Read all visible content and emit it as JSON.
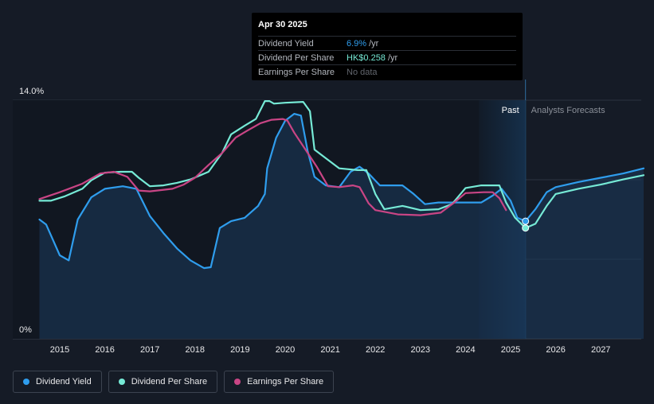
{
  "chart_data": {
    "type": "line",
    "x_ticks": [
      "2015",
      "2016",
      "2017",
      "2018",
      "2019",
      "2020",
      "2021",
      "2022",
      "2023",
      "2024",
      "2025",
      "2026",
      "2027"
    ],
    "y_ticks": [
      "0%",
      "14.0%"
    ],
    "ylim": [
      0,
      14
    ],
    "region_labels": {
      "past": "Past",
      "forecast": "Analysts Forecasts"
    },
    "series": [
      {
        "name": "Dividend Yield",
        "color": "#2f9ded",
        "filled": true,
        "points": [
          [
            2014.55,
            7.0
          ],
          [
            2014.7,
            6.7
          ],
          [
            2014.85,
            5.8
          ],
          [
            2015.0,
            4.9
          ],
          [
            2015.2,
            4.6
          ],
          [
            2015.4,
            7.0
          ],
          [
            2015.7,
            8.3
          ],
          [
            2016.0,
            8.8
          ],
          [
            2016.4,
            8.95
          ],
          [
            2016.7,
            8.8
          ],
          [
            2017.0,
            7.2
          ],
          [
            2017.3,
            6.2
          ],
          [
            2017.6,
            5.3
          ],
          [
            2017.9,
            4.6
          ],
          [
            2018.2,
            4.15
          ],
          [
            2018.35,
            4.2
          ],
          [
            2018.55,
            6.5
          ],
          [
            2018.8,
            6.9
          ],
          [
            2019.1,
            7.1
          ],
          [
            2019.4,
            7.8
          ],
          [
            2019.55,
            8.5
          ],
          [
            2019.6,
            10.0
          ],
          [
            2019.8,
            11.8
          ],
          [
            2020.0,
            12.8
          ],
          [
            2020.2,
            13.2
          ],
          [
            2020.35,
            13.1
          ],
          [
            2020.5,
            11.0
          ],
          [
            2020.65,
            9.5
          ],
          [
            2020.9,
            9.0
          ],
          [
            2021.2,
            8.9
          ],
          [
            2021.45,
            9.8
          ],
          [
            2021.65,
            10.1
          ],
          [
            2021.85,
            9.7
          ],
          [
            2022.1,
            9.0
          ],
          [
            2022.35,
            9.0
          ],
          [
            2022.6,
            9.0
          ],
          [
            2022.85,
            8.5
          ],
          [
            2023.1,
            7.9
          ],
          [
            2023.4,
            8.0
          ],
          [
            2023.7,
            8.0
          ],
          [
            2024.0,
            8.0
          ],
          [
            2024.35,
            8.0
          ],
          [
            2024.6,
            8.4
          ],
          [
            2024.8,
            8.8
          ],
          [
            2025.0,
            8.1
          ],
          [
            2025.15,
            7.1
          ],
          [
            2025.33,
            6.9
          ],
          [
            2025.55,
            7.6
          ],
          [
            2025.8,
            8.6
          ],
          [
            2026.0,
            8.9
          ],
          [
            2026.5,
            9.2
          ],
          [
            2027.0,
            9.45
          ],
          [
            2027.5,
            9.7
          ],
          [
            2027.95,
            10.0
          ]
        ]
      },
      {
        "name": "Dividend Per Share",
        "color": "#76ead6",
        "filled": false,
        "points": [
          [
            2014.55,
            8.1
          ],
          [
            2014.8,
            8.1
          ],
          [
            2015.1,
            8.35
          ],
          [
            2015.5,
            8.8
          ],
          [
            2015.7,
            9.3
          ],
          [
            2016.0,
            9.75
          ],
          [
            2016.35,
            9.8
          ],
          [
            2016.6,
            9.8
          ],
          [
            2016.75,
            9.45
          ],
          [
            2017.0,
            8.95
          ],
          [
            2017.3,
            9.0
          ],
          [
            2017.6,
            9.15
          ],
          [
            2017.9,
            9.35
          ],
          [
            2018.3,
            9.8
          ],
          [
            2018.6,
            10.9
          ],
          [
            2018.8,
            12.0
          ],
          [
            2019.1,
            12.5
          ],
          [
            2019.35,
            12.9
          ],
          [
            2019.55,
            13.95
          ],
          [
            2019.65,
            13.95
          ],
          [
            2019.75,
            13.8
          ],
          [
            2020.0,
            13.85
          ],
          [
            2020.4,
            13.9
          ],
          [
            2020.55,
            13.35
          ],
          [
            2020.65,
            11.1
          ],
          [
            2020.8,
            10.8
          ],
          [
            2021.2,
            10.0
          ],
          [
            2021.6,
            9.9
          ],
          [
            2021.8,
            9.9
          ],
          [
            2022.0,
            8.5
          ],
          [
            2022.2,
            7.6
          ],
          [
            2022.6,
            7.8
          ],
          [
            2023.0,
            7.55
          ],
          [
            2023.4,
            7.6
          ],
          [
            2023.7,
            7.9
          ],
          [
            2024.0,
            8.85
          ],
          [
            2024.35,
            9.0
          ],
          [
            2024.6,
            9.0
          ],
          [
            2024.75,
            9.0
          ],
          [
            2024.9,
            8.0
          ],
          [
            2025.1,
            7.1
          ],
          [
            2025.33,
            6.5
          ],
          [
            2025.55,
            6.75
          ],
          [
            2025.8,
            7.8
          ],
          [
            2026.0,
            8.5
          ],
          [
            2026.5,
            8.8
          ],
          [
            2027.0,
            9.05
          ],
          [
            2027.5,
            9.35
          ],
          [
            2027.95,
            9.6
          ]
        ]
      },
      {
        "name": "Earnings Per Share",
        "color": "#c94585",
        "filled": false,
        "points": [
          [
            2014.55,
            8.2
          ],
          [
            2015.0,
            8.6
          ],
          [
            2015.5,
            9.1
          ],
          [
            2015.9,
            9.7
          ],
          [
            2016.2,
            9.8
          ],
          [
            2016.5,
            9.5
          ],
          [
            2016.75,
            8.7
          ],
          [
            2017.0,
            8.65
          ],
          [
            2017.5,
            8.8
          ],
          [
            2017.75,
            9.05
          ],
          [
            2018.0,
            9.45
          ],
          [
            2018.3,
            10.2
          ],
          [
            2018.6,
            10.9
          ],
          [
            2018.9,
            11.8
          ],
          [
            2019.15,
            12.2
          ],
          [
            2019.45,
            12.65
          ],
          [
            2019.7,
            12.85
          ],
          [
            2019.95,
            12.9
          ],
          [
            2020.05,
            12.8
          ],
          [
            2020.2,
            12.1
          ],
          [
            2020.45,
            11.1
          ],
          [
            2020.7,
            10.1
          ],
          [
            2020.95,
            8.95
          ],
          [
            2021.2,
            8.9
          ],
          [
            2021.5,
            9.0
          ],
          [
            2021.65,
            8.9
          ],
          [
            2021.85,
            7.95
          ],
          [
            2022.0,
            7.55
          ],
          [
            2022.5,
            7.3
          ],
          [
            2023.0,
            7.25
          ],
          [
            2023.45,
            7.4
          ],
          [
            2023.75,
            8.0
          ],
          [
            2024.0,
            8.55
          ],
          [
            2024.4,
            8.6
          ],
          [
            2024.6,
            8.6
          ],
          [
            2024.75,
            8.25
          ],
          [
            2024.9,
            7.55
          ]
        ]
      }
    ],
    "legend": [
      "Dividend Yield",
      "Dividend Per Share",
      "Earnings Per Share"
    ],
    "tooltip": {
      "date": "Apr 30 2025",
      "rows": [
        {
          "label": "Dividend Yield",
          "value": "6.9%",
          "unit": "/yr",
          "tone": "blue"
        },
        {
          "label": "Dividend Per Share",
          "value": "HK$0.258",
          "unit": "/yr",
          "tone": "teal"
        },
        {
          "label": "Earnings Per Share",
          "value": "No data",
          "unit": "",
          "tone": "none"
        }
      ]
    },
    "hover_x": 2025.33,
    "past_band_start": 2024.3
  }
}
